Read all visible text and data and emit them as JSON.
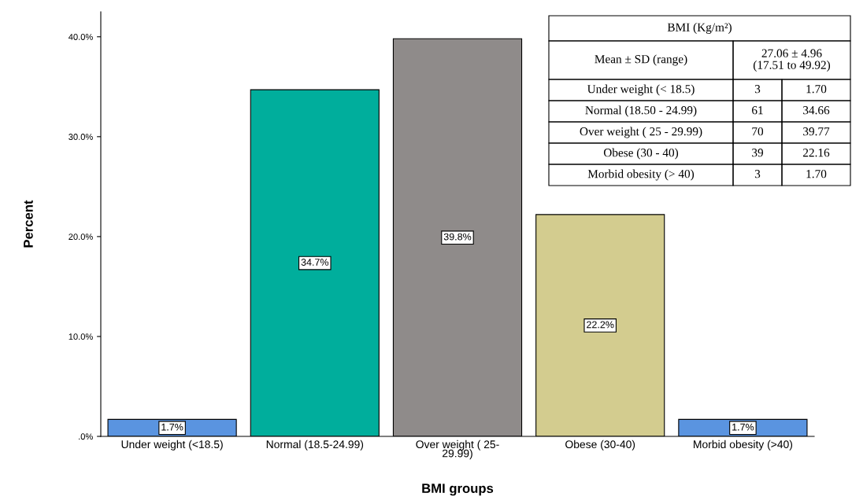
{
  "chart_data": {
    "type": "bar",
    "xlabel": "BMI groups",
    "ylabel": "Percent",
    "categories": [
      "Under weight (<18.5)",
      "Normal (18.5-24.99)",
      "Over weight ( 25-\n29.99)",
      "Obese (30-40)",
      "Morbid obesity (>40)"
    ],
    "values": [
      1.7,
      34.7,
      39.8,
      22.2,
      1.7
    ],
    "value_labels": [
      "1.7%",
      "34.7%",
      "39.8%",
      "22.2%",
      "1.7%"
    ],
    "colors": [
      "#5a94e0",
      "#00ae9c",
      "#8f8b8a",
      "#d3cc8f",
      "#5a94e0"
    ],
    "ylim": [
      0,
      42.5
    ],
    "yticks": [
      {
        "value": 0,
        "label": ".0%"
      },
      {
        "value": 10,
        "label": "10.0%"
      },
      {
        "value": 20,
        "label": "20.0%"
      },
      {
        "value": 30,
        "label": "30.0%"
      },
      {
        "value": 40,
        "label": "40.0%"
      }
    ],
    "grid": false,
    "legend": false,
    "annotations": [
      "BMI (Kg/m²)",
      "Mean ± SD (range)",
      "27.06 ± 4.96\n(17.51 to 49.92)",
      "Under weight (< 18.5)",
      "3",
      "1.70",
      "Normal (18.50 - 24.99)",
      "61",
      "34.66",
      "Over weight ( 25 - 29.99)",
      "70",
      "39.77",
      "Obese (30 - 40)",
      "39",
      "22.16",
      "Morbid obesity (> 40)",
      "3",
      "1.70"
    ]
  }
}
